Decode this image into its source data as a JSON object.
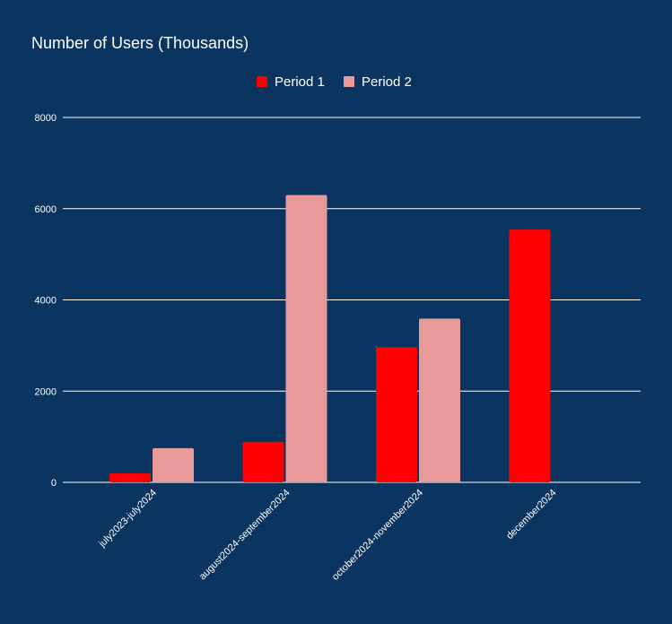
{
  "chart_data": {
    "type": "bar",
    "title": "Number of Users (Thousands)",
    "xlabel": "",
    "ylabel": "",
    "categories": [
      "july2023-july2024",
      "august2024-september2024",
      "october2024-november2024",
      "december2024"
    ],
    "series": [
      {
        "name": "Period 1",
        "color": "#ff0000",
        "values": [
          200,
          890,
          2960,
          5540
        ]
      },
      {
        "name": "Period 2",
        "color": "#e89a9a",
        "values": [
          750,
          6300,
          3590,
          null
        ]
      }
    ],
    "ylim": [
      0,
      8000
    ],
    "yticks": [
      0,
      2000,
      4000,
      6000,
      8000
    ],
    "grid": true,
    "legend": "top-center",
    "background": "#0b3561"
  }
}
